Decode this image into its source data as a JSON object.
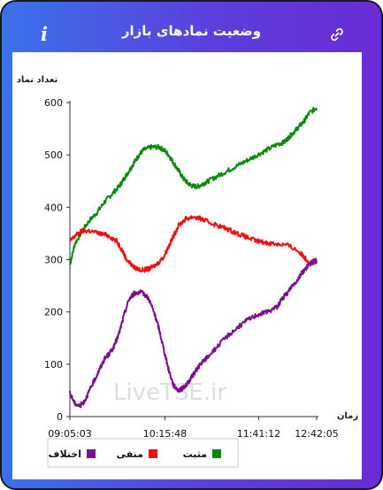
{
  "header": {
    "title": "وضعیت نمادهای بازار",
    "info_icon_glyph": "i",
    "info_icon": "info-icon",
    "link_icon": "link-icon"
  },
  "watermark": "LiveTSE.ir",
  "chart_data": {
    "type": "line",
    "title": "",
    "ylabel": "تعداد نماد",
    "xlabel": "زمان",
    "ylim": [
      0,
      600
    ],
    "yticks": [
      0,
      100,
      200,
      300,
      400,
      500,
      600
    ],
    "x_tick_labels": [
      "09:05:03",
      "10:15:48",
      "11:41:12",
      "12:42:05"
    ],
    "x_tick_positions": [
      0,
      0.385,
      0.765,
      1.0
    ],
    "grid": false,
    "legend_position": "bottom",
    "series": [
      {
        "name": "مثبت",
        "color": "#0a8a0a",
        "points": [
          [
            0,
            290
          ],
          [
            0.02,
            330
          ],
          [
            0.05,
            355
          ],
          [
            0.08,
            375
          ],
          [
            0.11,
            390
          ],
          [
            0.14,
            410
          ],
          [
            0.17,
            425
          ],
          [
            0.2,
            440
          ],
          [
            0.22,
            455
          ],
          [
            0.24,
            470
          ],
          [
            0.26,
            485
          ],
          [
            0.28,
            500
          ],
          [
            0.3,
            510
          ],
          [
            0.33,
            515
          ],
          [
            0.36,
            515
          ],
          [
            0.38,
            510
          ],
          [
            0.4,
            500
          ],
          [
            0.42,
            485
          ],
          [
            0.44,
            470
          ],
          [
            0.46,
            455
          ],
          [
            0.48,
            445
          ],
          [
            0.5,
            440
          ],
          [
            0.52,
            440
          ],
          [
            0.54,
            445
          ],
          [
            0.56,
            450
          ],
          [
            0.6,
            460
          ],
          [
            0.64,
            470
          ],
          [
            0.68,
            480
          ],
          [
            0.72,
            490
          ],
          [
            0.76,
            500
          ],
          [
            0.8,
            510
          ],
          [
            0.84,
            520
          ],
          [
            0.87,
            525
          ],
          [
            0.89,
            535
          ],
          [
            0.91,
            545
          ],
          [
            0.93,
            555
          ],
          [
            0.95,
            565
          ],
          [
            0.97,
            580
          ],
          [
            1.0,
            590
          ]
        ]
      },
      {
        "name": "منفی",
        "color": "#ee1111",
        "points": [
          [
            0,
            335
          ],
          [
            0.02,
            345
          ],
          [
            0.05,
            355
          ],
          [
            0.08,
            355
          ],
          [
            0.12,
            350
          ],
          [
            0.16,
            345
          ],
          [
            0.19,
            335
          ],
          [
            0.21,
            320
          ],
          [
            0.23,
            300
          ],
          [
            0.26,
            285
          ],
          [
            0.29,
            280
          ],
          [
            0.32,
            282
          ],
          [
            0.35,
            290
          ],
          [
            0.38,
            305
          ],
          [
            0.4,
            325
          ],
          [
            0.42,
            345
          ],
          [
            0.44,
            365
          ],
          [
            0.47,
            378
          ],
          [
            0.5,
            382
          ],
          [
            0.53,
            378
          ],
          [
            0.56,
            372
          ],
          [
            0.6,
            365
          ],
          [
            0.64,
            358
          ],
          [
            0.68,
            350
          ],
          [
            0.72,
            342
          ],
          [
            0.76,
            335
          ],
          [
            0.8,
            332
          ],
          [
            0.84,
            330
          ],
          [
            0.88,
            328
          ],
          [
            0.92,
            318
          ],
          [
            0.95,
            305
          ],
          [
            0.97,
            295
          ],
          [
            1.0,
            292
          ]
        ]
      },
      {
        "name": "اختلاف",
        "color": "#7a1090",
        "points": [
          [
            0,
            45
          ],
          [
            0.02,
            25
          ],
          [
            0.04,
            20
          ],
          [
            0.06,
            30
          ],
          [
            0.08,
            50
          ],
          [
            0.1,
            70
          ],
          [
            0.12,
            90
          ],
          [
            0.14,
            110
          ],
          [
            0.16,
            120
          ],
          [
            0.18,
            135
          ],
          [
            0.2,
            160
          ],
          [
            0.22,
            195
          ],
          [
            0.24,
            225
          ],
          [
            0.26,
            235
          ],
          [
            0.28,
            238
          ],
          [
            0.3,
            235
          ],
          [
            0.32,
            225
          ],
          [
            0.34,
            200
          ],
          [
            0.36,
            170
          ],
          [
            0.38,
            130
          ],
          [
            0.4,
            90
          ],
          [
            0.42,
            60
          ],
          [
            0.44,
            50
          ],
          [
            0.46,
            55
          ],
          [
            0.48,
            65
          ],
          [
            0.5,
            80
          ],
          [
            0.52,
            95
          ],
          [
            0.54,
            105
          ],
          [
            0.56,
            115
          ],
          [
            0.6,
            135
          ],
          [
            0.64,
            155
          ],
          [
            0.68,
            170
          ],
          [
            0.72,
            185
          ],
          [
            0.76,
            195
          ],
          [
            0.8,
            200
          ],
          [
            0.84,
            210
          ],
          [
            0.86,
            225
          ],
          [
            0.88,
            235
          ],
          [
            0.9,
            250
          ],
          [
            0.92,
            260
          ],
          [
            0.94,
            275
          ],
          [
            0.96,
            285
          ],
          [
            0.98,
            295
          ],
          [
            1.0,
            298
          ]
        ]
      }
    ]
  }
}
